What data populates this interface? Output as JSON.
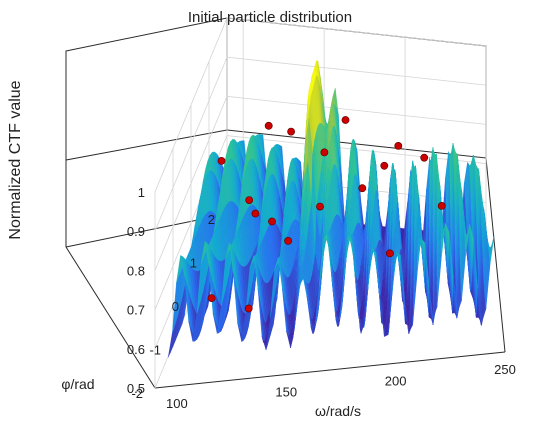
{
  "chart_data": {
    "type": "surface",
    "title": "Initial particle distribution",
    "xlabel": "ω/rad/s",
    "ylabel": "φ/rad",
    "zlabel": "Normalized CTF value",
    "xlim": [
      90,
      250
    ],
    "ylim": [
      -2,
      2
    ],
    "zlim": [
      0.5,
      1
    ],
    "x_ticks": [
      "100",
      "150",
      "200",
      "250"
    ],
    "y_ticks": [
      "-2",
      "-1",
      "0",
      "1",
      "2"
    ],
    "z_ticks": [
      "0.5",
      "0.6",
      "0.7",
      "0.8",
      "0.9",
      "1"
    ],
    "grid": true,
    "colormap": "parula",
    "particle_color": "#cc0000",
    "particles": [
      {
        "x": 91,
        "y": 1.6,
        "z": 0.68
      },
      {
        "x": 105,
        "y": -0.5,
        "z": 0.56
      },
      {
        "x": 112,
        "y": 1.1,
        "z": 0.64
      },
      {
        "x": 120,
        "y": 1.5,
        "z": 0.79
      },
      {
        "x": 121,
        "y": 0.4,
        "z": 0.68
      },
      {
        "x": 127,
        "y": -1.0,
        "z": 0.58
      },
      {
        "x": 130,
        "y": 0.4,
        "z": 0.66
      },
      {
        "x": 136,
        "y": 1.1,
        "z": 0.82
      },
      {
        "x": 141,
        "y": 0.0,
        "z": 0.65
      },
      {
        "x": 155,
        "y": 0.6,
        "z": 0.68
      },
      {
        "x": 156,
        "y": 0.9,
        "z": 0.79
      },
      {
        "x": 165,
        "y": 1.6,
        "z": 0.81
      },
      {
        "x": 178,
        "y": 0.7,
        "z": 0.72
      },
      {
        "x": 190,
        "y": 0.8,
        "z": 0.77
      },
      {
        "x": 195,
        "y": -0.3,
        "z": 0.64
      },
      {
        "x": 197,
        "y": 1.3,
        "z": 0.78
      },
      {
        "x": 212,
        "y": 1.6,
        "z": 0.73
      },
      {
        "x": 222,
        "y": 0.7,
        "z": 0.68
      }
    ]
  }
}
